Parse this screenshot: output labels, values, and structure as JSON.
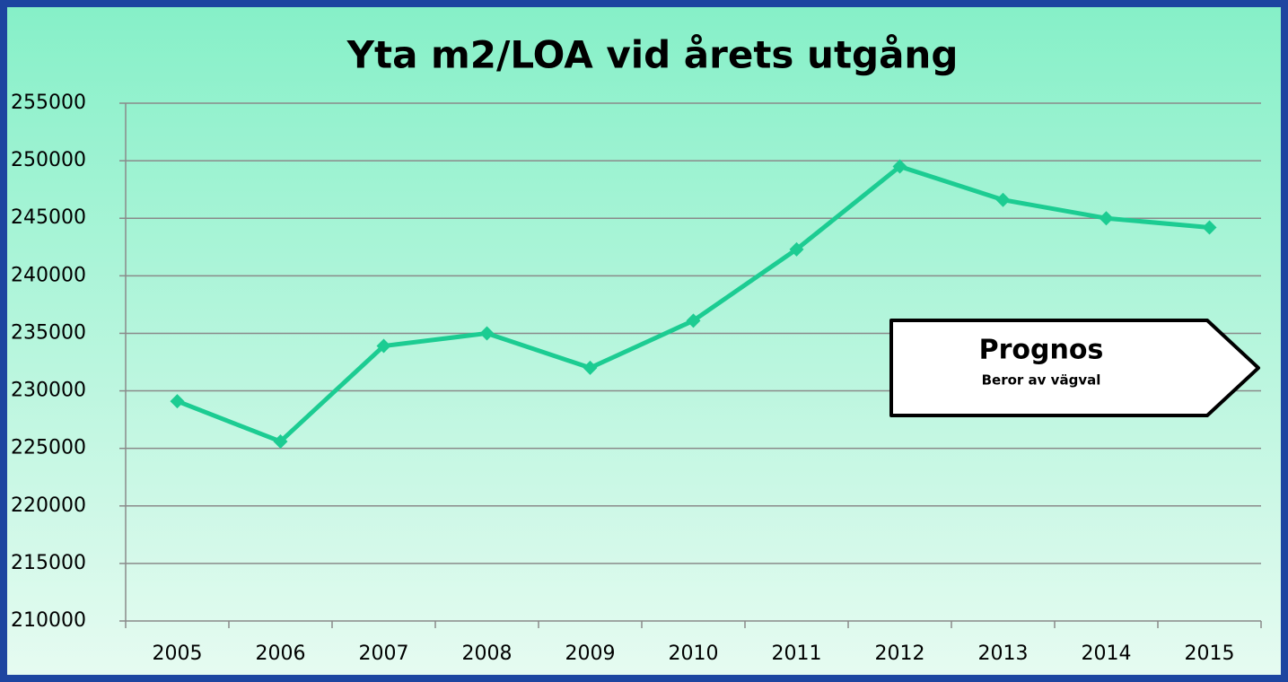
{
  "chart_data": {
    "type": "line",
    "title": "Yta m2/LOA vid årets utgång",
    "categories": [
      "2005",
      "2006",
      "2007",
      "2008",
      "2009",
      "2010",
      "2011",
      "2012",
      "2013",
      "2014",
      "2015"
    ],
    "series": [
      {
        "name": "Yta m2/LOA",
        "color": "#1ccc92",
        "values": [
          229100,
          225600,
          233900,
          235000,
          232000,
          236100,
          242300,
          249500,
          246600,
          245000,
          244200
        ]
      }
    ],
    "ylim": [
      210000,
      255000
    ],
    "yticks": [
      210000,
      215000,
      220000,
      225000,
      230000,
      235000,
      240000,
      245000,
      250000,
      255000
    ],
    "grid": true,
    "annotations": [
      "Prognos",
      "Beror av vägval"
    ]
  }
}
